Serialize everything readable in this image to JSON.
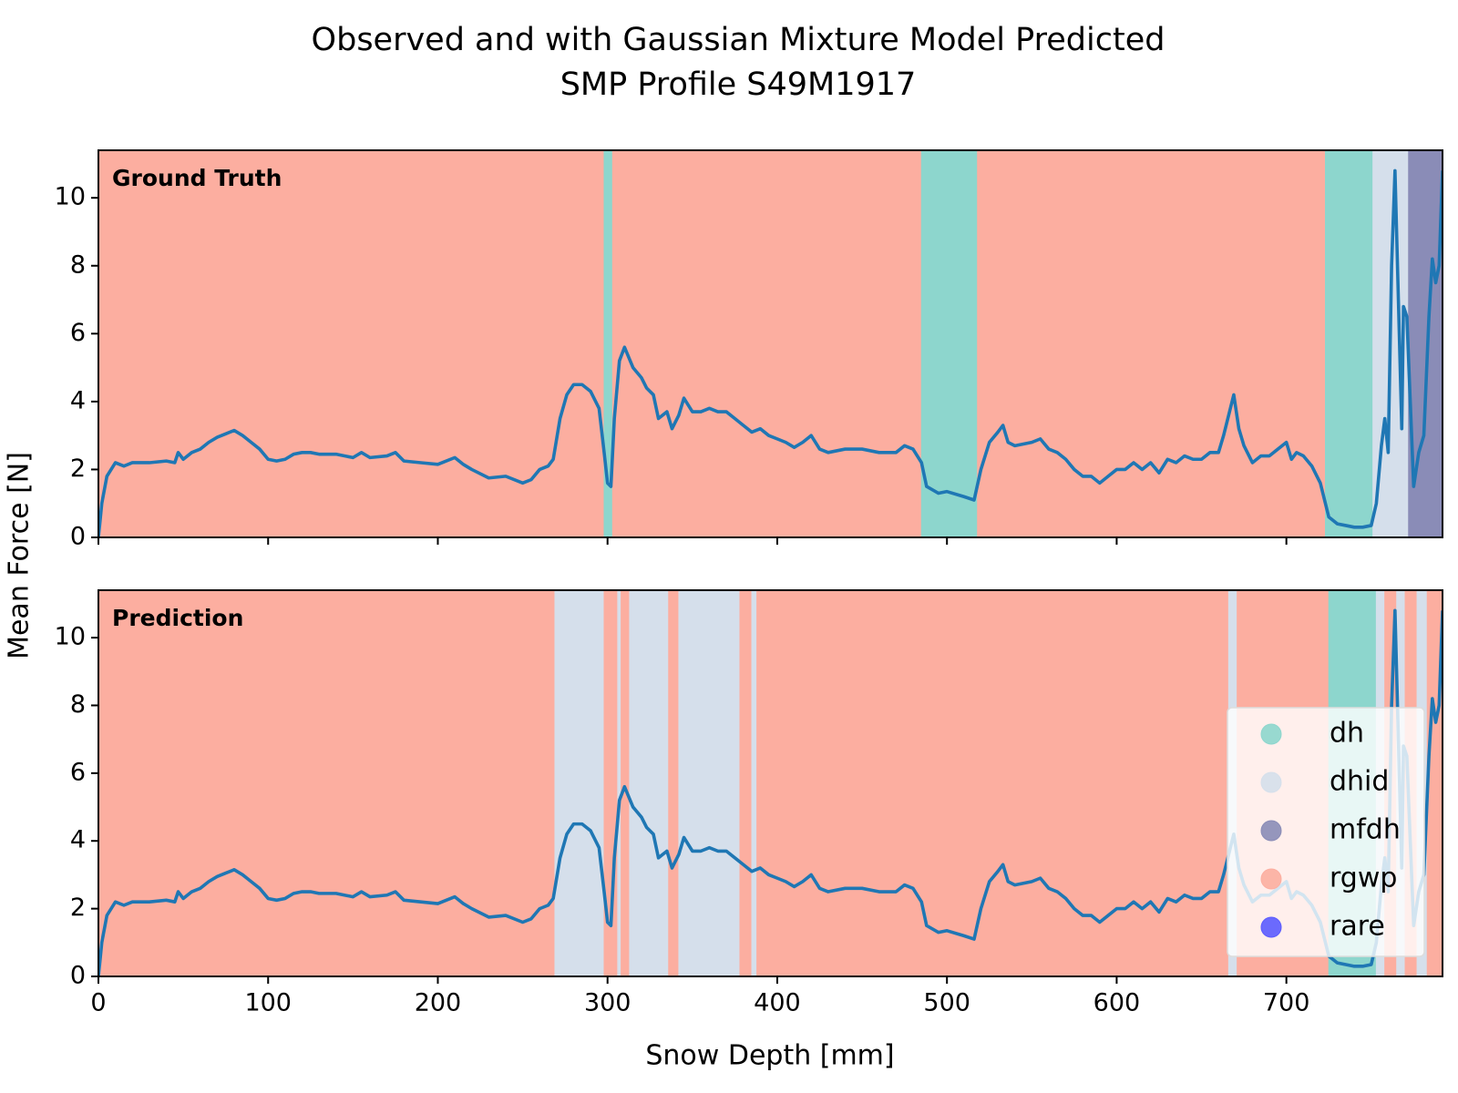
{
  "chart_data": {
    "type": "line",
    "title": "Observed and with Gaussian Mixture Model Predicted",
    "subtitle": "SMP Profile S49M1917",
    "xlabel": "Snow Depth [mm]",
    "ylabel": "Mean Force [N]",
    "xlim": [
      0,
      792
    ],
    "xticks": [
      0,
      100,
      200,
      300,
      400,
      500,
      600,
      700
    ],
    "legend": {
      "loc": "lower right",
      "entries": [
        {
          "name": "dh",
          "color": "#8dd6cd"
        },
        {
          "name": "dhid",
          "color": "#d5dfeb"
        },
        {
          "name": "mfdh",
          "color": "#8a8cb7"
        },
        {
          "name": "rgwp",
          "color": "#fcaea0"
        },
        {
          "name": "rare",
          "color": "#5b5bff"
        }
      ]
    },
    "line_color": "#1f77b4",
    "panels": [
      {
        "label": "Ground Truth",
        "ylim": [
          0,
          11.4
        ],
        "yticks": [
          0,
          2,
          4,
          6,
          8,
          10
        ],
        "show_xticklabels": false,
        "regions": [
          {
            "class": "rgwp",
            "x": [
              0,
              298
            ]
          },
          {
            "class": "dh",
            "x": [
              298,
              303
            ]
          },
          {
            "class": "rgwp",
            "x": [
              303,
              485
            ]
          },
          {
            "class": "dh",
            "x": [
              485,
              518
            ]
          },
          {
            "class": "rgwp",
            "x": [
              518,
              723
            ]
          },
          {
            "class": "dh",
            "x": [
              723,
              751
            ]
          },
          {
            "class": "dhid",
            "x": [
              751,
              772
            ]
          },
          {
            "class": "mfdh",
            "x": [
              772,
              792
            ]
          }
        ],
        "series": [
          {
            "x": [
              0,
              2,
              5,
              10,
              15,
              20,
              30,
              40,
              45,
              47,
              50,
              55,
              60,
              65,
              70,
              75,
              80,
              85,
              90,
              95,
              100,
              105,
              110,
              115,
              120,
              125,
              130,
              140,
              150,
              155,
              160,
              170,
              175,
              180,
              190,
              200,
              210,
              215,
              220,
              230,
              240,
              250,
              255,
              260,
              265,
              268,
              272,
              276,
              280,
              285,
              290,
              295,
              298,
              300,
              302,
              304,
              307,
              310,
              315,
              320,
              323,
              327,
              330,
              335,
              338,
              342,
              345,
              350,
              355,
              360,
              365,
              370,
              375,
              380,
              385,
              390,
              395,
              400,
              405,
              410,
              415,
              420,
              425,
              430,
              440,
              450,
              460,
              470,
              475,
              480,
              485,
              488,
              495,
              500,
              510,
              516,
              520,
              525,
              530,
              533,
              536,
              540,
              550,
              555,
              560,
              565,
              570,
              575,
              580,
              585,
              590,
              595,
              600,
              605,
              610,
              615,
              620,
              625,
              630,
              635,
              640,
              645,
              650,
              655,
              660,
              663,
              667,
              669,
              672,
              675,
              680,
              685,
              690,
              695,
              700,
              703,
              706,
              710,
              715,
              720,
              725,
              730,
              735,
              740,
              745,
              750,
              753,
              756,
              758,
              760,
              762,
              764,
              766,
              768,
              769,
              771,
              773,
              775,
              778,
              781,
              784,
              786,
              788,
              790,
              792
            ],
            "values": [
              0,
              1,
              1.8,
              2.2,
              2.1,
              2.2,
              2.2,
              2.25,
              2.2,
              2.5,
              2.3,
              2.5,
              2.6,
              2.8,
              2.95,
              3.05,
              3.15,
              3,
              2.8,
              2.6,
              2.3,
              2.25,
              2.3,
              2.45,
              2.5,
              2.5,
              2.45,
              2.45,
              2.35,
              2.5,
              2.35,
              2.4,
              2.5,
              2.25,
              2.2,
              2.15,
              2.35,
              2.15,
              2,
              1.75,
              1.8,
              1.6,
              1.7,
              2,
              2.1,
              2.3,
              3.5,
              4.2,
              4.5,
              4.5,
              4.3,
              3.8,
              2.5,
              1.6,
              1.5,
              3.5,
              5.2,
              5.6,
              5,
              4.7,
              4.4,
              4.2,
              3.5,
              3.7,
              3.2,
              3.6,
              4.1,
              3.7,
              3.7,
              3.8,
              3.7,
              3.7,
              3.5,
              3.3,
              3.1,
              3.2,
              3,
              2.9,
              2.8,
              2.65,
              2.8,
              3,
              2.6,
              2.5,
              2.6,
              2.6,
              2.5,
              2.5,
              2.7,
              2.6,
              2.2,
              1.5,
              1.3,
              1.35,
              1.2,
              1.1,
              2,
              2.8,
              3.1,
              3.3,
              2.8,
              2.7,
              2.8,
              2.9,
              2.6,
              2.5,
              2.3,
              2,
              1.8,
              1.8,
              1.6,
              1.8,
              2,
              2,
              2.2,
              2,
              2.2,
              1.9,
              2.3,
              2.2,
              2.4,
              2.3,
              2.3,
              2.5,
              2.5,
              3,
              3.8,
              4.2,
              3.2,
              2.7,
              2.2,
              2.4,
              2.4,
              2.6,
              2.8,
              2.3,
              2.5,
              2.4,
              2.1,
              1.6,
              0.6,
              0.4,
              0.35,
              0.3,
              0.3,
              0.35,
              1,
              2.7,
              3.5,
              2.5,
              8,
              10.8,
              7,
              3.2,
              6.8,
              6.5,
              4,
              1.5,
              2.5,
              3,
              6.5,
              8.2,
              7.5,
              8,
              10.8
            ]
          }
        ]
      },
      {
        "label": "Prediction",
        "ylim": [
          0,
          11.4
        ],
        "yticks": [
          0,
          2,
          4,
          6,
          8,
          10
        ],
        "show_xticklabels": true,
        "regions": [
          {
            "class": "rgwp",
            "x": [
              0,
              269
            ]
          },
          {
            "class": "dhid",
            "x": [
              269,
              298
            ]
          },
          {
            "class": "rgwp",
            "x": [
              298,
              306
            ]
          },
          {
            "class": "dhid",
            "x": [
              306,
              308
            ]
          },
          {
            "class": "rgwp",
            "x": [
              308,
              313
            ]
          },
          {
            "class": "dhid",
            "x": [
              313,
              336
            ]
          },
          {
            "class": "rgwp",
            "x": [
              336,
              342
            ]
          },
          {
            "class": "dhid",
            "x": [
              342,
              378
            ]
          },
          {
            "class": "rgwp",
            "x": [
              378,
              385
            ]
          },
          {
            "class": "dhid",
            "x": [
              385,
              388
            ]
          },
          {
            "class": "rgwp",
            "x": [
              388,
              666
            ]
          },
          {
            "class": "dhid",
            "x": [
              666,
              671
            ]
          },
          {
            "class": "rgwp",
            "x": [
              671,
              725
            ]
          },
          {
            "class": "dh",
            "x": [
              725,
              753
            ]
          },
          {
            "class": "dhid",
            "x": [
              753,
              758
            ]
          },
          {
            "class": "rgwp",
            "x": [
              758,
              765
            ]
          },
          {
            "class": "dhid",
            "x": [
              765,
              770
            ]
          },
          {
            "class": "rgwp",
            "x": [
              770,
              777
            ]
          },
          {
            "class": "dhid",
            "x": [
              777,
              783
            ]
          },
          {
            "class": "rgwp",
            "x": [
              783,
              792
            ]
          }
        ],
        "series": [
          {
            "x": [
              0,
              2,
              5,
              10,
              15,
              20,
              30,
              40,
              45,
              47,
              50,
              55,
              60,
              65,
              70,
              75,
              80,
              85,
              90,
              95,
              100,
              105,
              110,
              115,
              120,
              125,
              130,
              140,
              150,
              155,
              160,
              170,
              175,
              180,
              190,
              200,
              210,
              215,
              220,
              230,
              240,
              250,
              255,
              260,
              265,
              268,
              272,
              276,
              280,
              285,
              290,
              295,
              298,
              300,
              302,
              304,
              307,
              310,
              315,
              320,
              323,
              327,
              330,
              335,
              338,
              342,
              345,
              350,
              355,
              360,
              365,
              370,
              375,
              380,
              385,
              390,
              395,
              400,
              405,
              410,
              415,
              420,
              425,
              430,
              440,
              450,
              460,
              470,
              475,
              480,
              485,
              488,
              495,
              500,
              510,
              516,
              520,
              525,
              530,
              533,
              536,
              540,
              550,
              555,
              560,
              565,
              570,
              575,
              580,
              585,
              590,
              595,
              600,
              605,
              610,
              615,
              620,
              625,
              630,
              635,
              640,
              645,
              650,
              655,
              660,
              663,
              667,
              669,
              672,
              675,
              680,
              685,
              690,
              695,
              700,
              703,
              706,
              710,
              715,
              720,
              725,
              730,
              735,
              740,
              745,
              750,
              753,
              756,
              758,
              760,
              762,
              764,
              766,
              768,
              769,
              771,
              773,
              775,
              778,
              781,
              784,
              786,
              788,
              790,
              792
            ],
            "values": [
              0,
              1,
              1.8,
              2.2,
              2.1,
              2.2,
              2.2,
              2.25,
              2.2,
              2.5,
              2.3,
              2.5,
              2.6,
              2.8,
              2.95,
              3.05,
              3.15,
              3,
              2.8,
              2.6,
              2.3,
              2.25,
              2.3,
              2.45,
              2.5,
              2.5,
              2.45,
              2.45,
              2.35,
              2.5,
              2.35,
              2.4,
              2.5,
              2.25,
              2.2,
              2.15,
              2.35,
              2.15,
              2,
              1.75,
              1.8,
              1.6,
              1.7,
              2,
              2.1,
              2.3,
              3.5,
              4.2,
              4.5,
              4.5,
              4.3,
              3.8,
              2.5,
              1.6,
              1.5,
              3.5,
              5.2,
              5.6,
              5,
              4.7,
              4.4,
              4.2,
              3.5,
              3.7,
              3.2,
              3.6,
              4.1,
              3.7,
              3.7,
              3.8,
              3.7,
              3.7,
              3.5,
              3.3,
              3.1,
              3.2,
              3,
              2.9,
              2.8,
              2.65,
              2.8,
              3,
              2.6,
              2.5,
              2.6,
              2.6,
              2.5,
              2.5,
              2.7,
              2.6,
              2.2,
              1.5,
              1.3,
              1.35,
              1.2,
              1.1,
              2,
              2.8,
              3.1,
              3.3,
              2.8,
              2.7,
              2.8,
              2.9,
              2.6,
              2.5,
              2.3,
              2,
              1.8,
              1.8,
              1.6,
              1.8,
              2,
              2,
              2.2,
              2,
              2.2,
              1.9,
              2.3,
              2.2,
              2.4,
              2.3,
              2.3,
              2.5,
              2.5,
              3,
              3.8,
              4.2,
              3.2,
              2.7,
              2.2,
              2.4,
              2.4,
              2.6,
              2.8,
              2.3,
              2.5,
              2.4,
              2.1,
              1.6,
              0.6,
              0.4,
              0.35,
              0.3,
              0.3,
              0.35,
              1,
              2.7,
              3.5,
              2.5,
              8,
              10.8,
              7,
              3.2,
              6.8,
              6.5,
              4,
              1.5,
              2.5,
              3,
              6.5,
              8.2,
              7.5,
              8,
              10.8
            ]
          }
        ]
      }
    ]
  }
}
